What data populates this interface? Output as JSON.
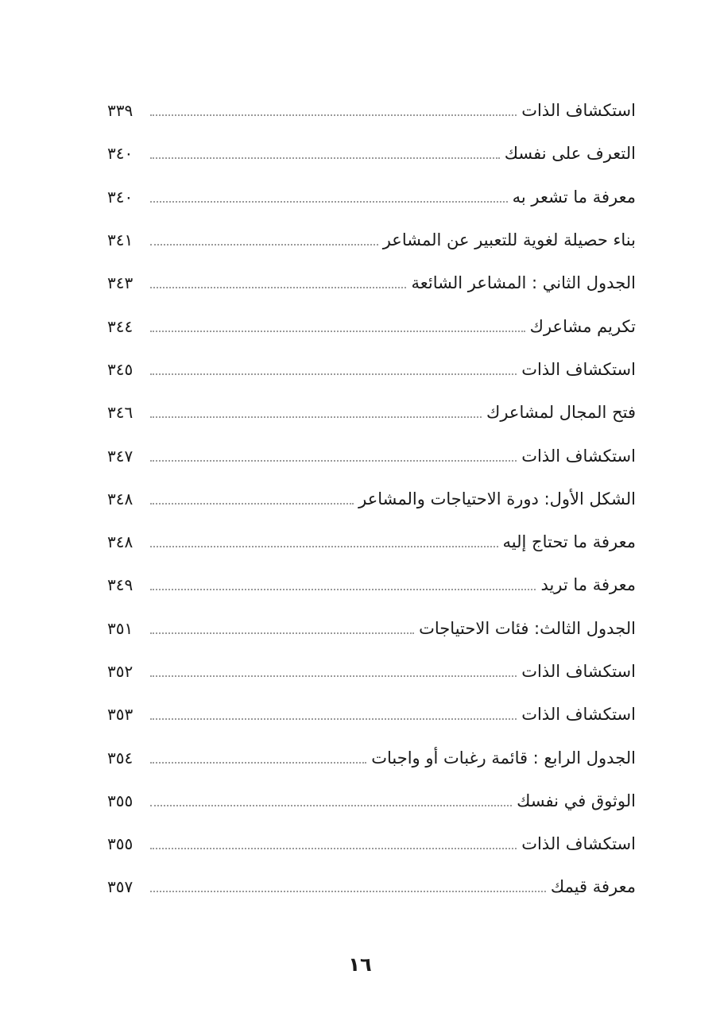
{
  "toc": {
    "entries": [
      {
        "title": "استكشاف الذات",
        "page": "٣٣٩"
      },
      {
        "title": "التعرف على نفسك",
        "page": "٣٤٠"
      },
      {
        "title": "معرفة ما تشعر به",
        "page": "٣٤٠"
      },
      {
        "title": "بناء حصيلة لغوية للتعبير عن المشاعر",
        "page": "٣٤١"
      },
      {
        "title": "الجدول الثاني : المشاعر الشائعة",
        "page": "٣٤٣"
      },
      {
        "title": "تكريم مشاعرك",
        "page": "٣٤٤"
      },
      {
        "title": "استكشاف الذات",
        "page": "٣٤٥"
      },
      {
        "title": "فتح المجال لمشاعرك",
        "page": "٣٤٦"
      },
      {
        "title": "استكشاف الذات",
        "page": "٣٤٧"
      },
      {
        "title": "الشكل الأول: دورة الاحتياجات والمشاعر",
        "page": "٣٤٨"
      },
      {
        "title": "معرفة ما تحتاج إليه",
        "page": "٣٤٨"
      },
      {
        "title": "معرفة ما تريد",
        "page": "٣٤٩"
      },
      {
        "title": "الجدول الثالث: فئات الاحتياجات",
        "page": "٣٥١"
      },
      {
        "title": "استكشاف الذات",
        "page": "٣٥٢"
      },
      {
        "title": "استكشاف الذات",
        "page": "٣٥٣"
      },
      {
        "title": "الجدول الرابع : قائمة رغبات أو واجبات",
        "page": "٣٥٤"
      },
      {
        "title": "الوثوق في نفسك",
        "page": "٣٥٥"
      },
      {
        "title": "استكشاف الذات",
        "page": "٣٥٥"
      },
      {
        "title": "معرفة قيمك",
        "page": "٣٥٧"
      }
    ]
  },
  "footer": {
    "page_number": "١٦"
  }
}
